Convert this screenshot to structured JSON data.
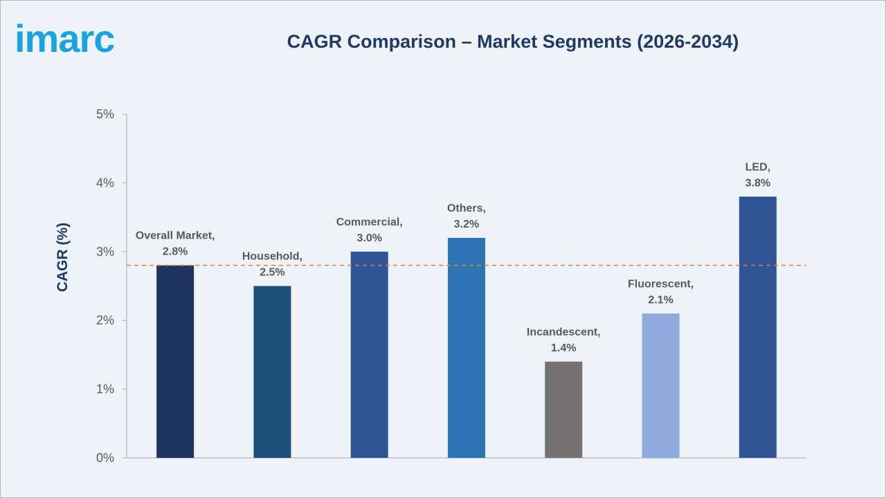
{
  "brand": {
    "logo_text": "imarc",
    "color": "#1aa3e0"
  },
  "chart_data": {
    "type": "bar",
    "title": "CAGR Comparison – Market Segments (2026-2034)",
    "xlabel": "",
    "ylabel": "CAGR (%)",
    "ylim": [
      0,
      5
    ],
    "yticks": [
      {
        "value": 0,
        "label": "0%"
      },
      {
        "value": 1,
        "label": "1%"
      },
      {
        "value": 2,
        "label": "2%"
      },
      {
        "value": 3,
        "label": "3%"
      },
      {
        "value": 4,
        "label": "4%"
      },
      {
        "value": 5,
        "label": "5%"
      }
    ],
    "categories": [
      "Overall Market",
      "Household",
      "Commercial",
      "Others",
      "Incandescent",
      "Fluorescent",
      "LED"
    ],
    "values": [
      2.8,
      2.5,
      3.0,
      3.2,
      1.4,
      2.1,
      3.8
    ],
    "data_labels": [
      [
        "Overall Market,",
        "2.8%"
      ],
      [
        "Household,",
        "2.5%"
      ],
      [
        "Commercial,",
        "3.0%"
      ],
      [
        "Others,",
        "3.2%"
      ],
      [
        "Incandescent,",
        "1.4%"
      ],
      [
        "Fluorescent,",
        "2.1%"
      ],
      [
        "LED,",
        "3.8%"
      ]
    ],
    "colors": [
      "#1f3560",
      "#1f4e79",
      "#2f5597",
      "#2e75b6",
      "#767171",
      "#8faadc",
      "#2f5597"
    ],
    "reference_line": {
      "value": 2.8,
      "style": "dashed",
      "color": "#ed7d31"
    },
    "grid": false,
    "legend": "none"
  }
}
